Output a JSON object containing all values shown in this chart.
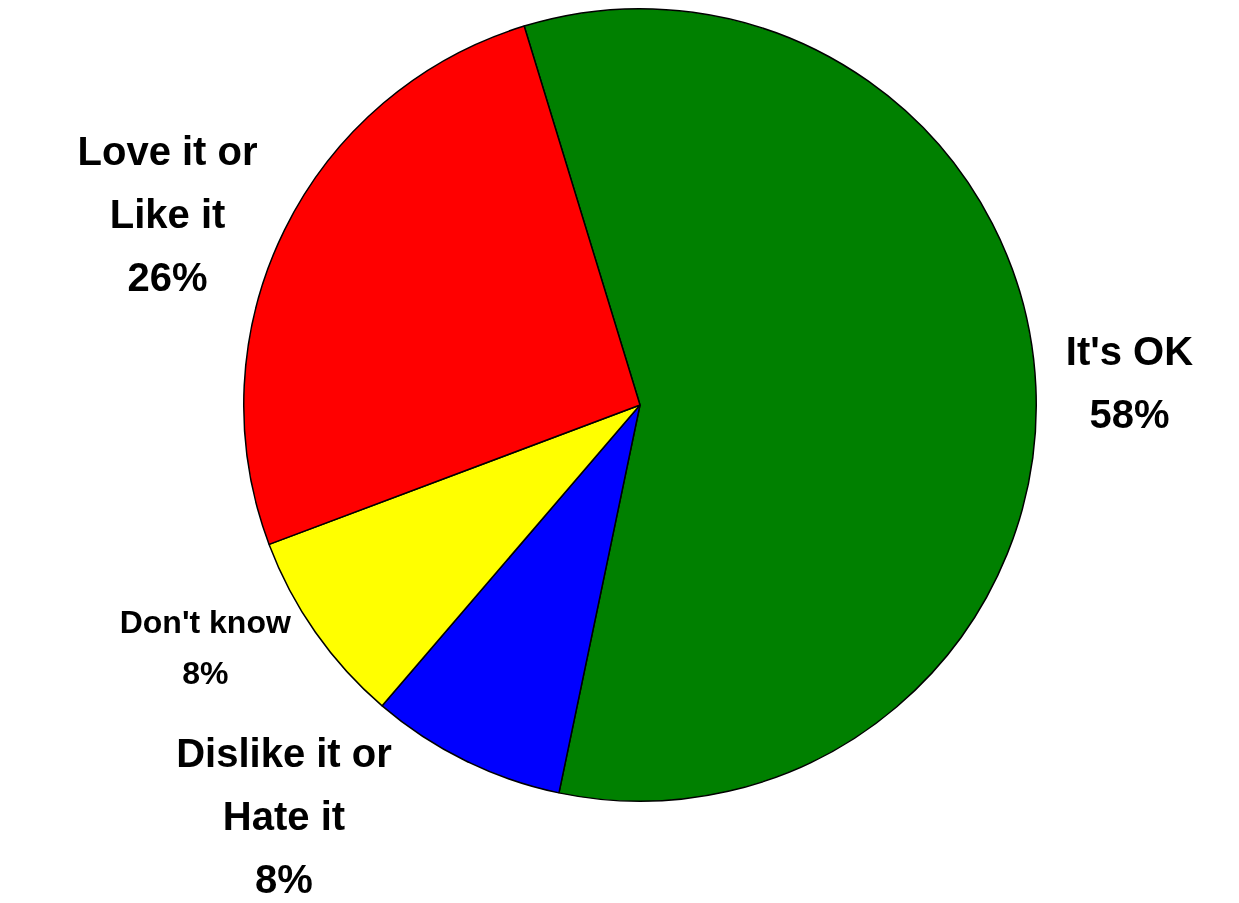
{
  "chart_data": {
    "type": "pie",
    "categories": [
      "It's OK",
      "Dislike it or Hate it",
      "Don't know",
      "Love it or Like it"
    ],
    "values": [
      58,
      8,
      8,
      26
    ],
    "value_labels": [
      "58%",
      "8%",
      "8%",
      "26%"
    ],
    "colors": [
      "#008000",
      "#0000ff",
      "#ffff00",
      "#ff0000"
    ],
    "legend": false
  }
}
